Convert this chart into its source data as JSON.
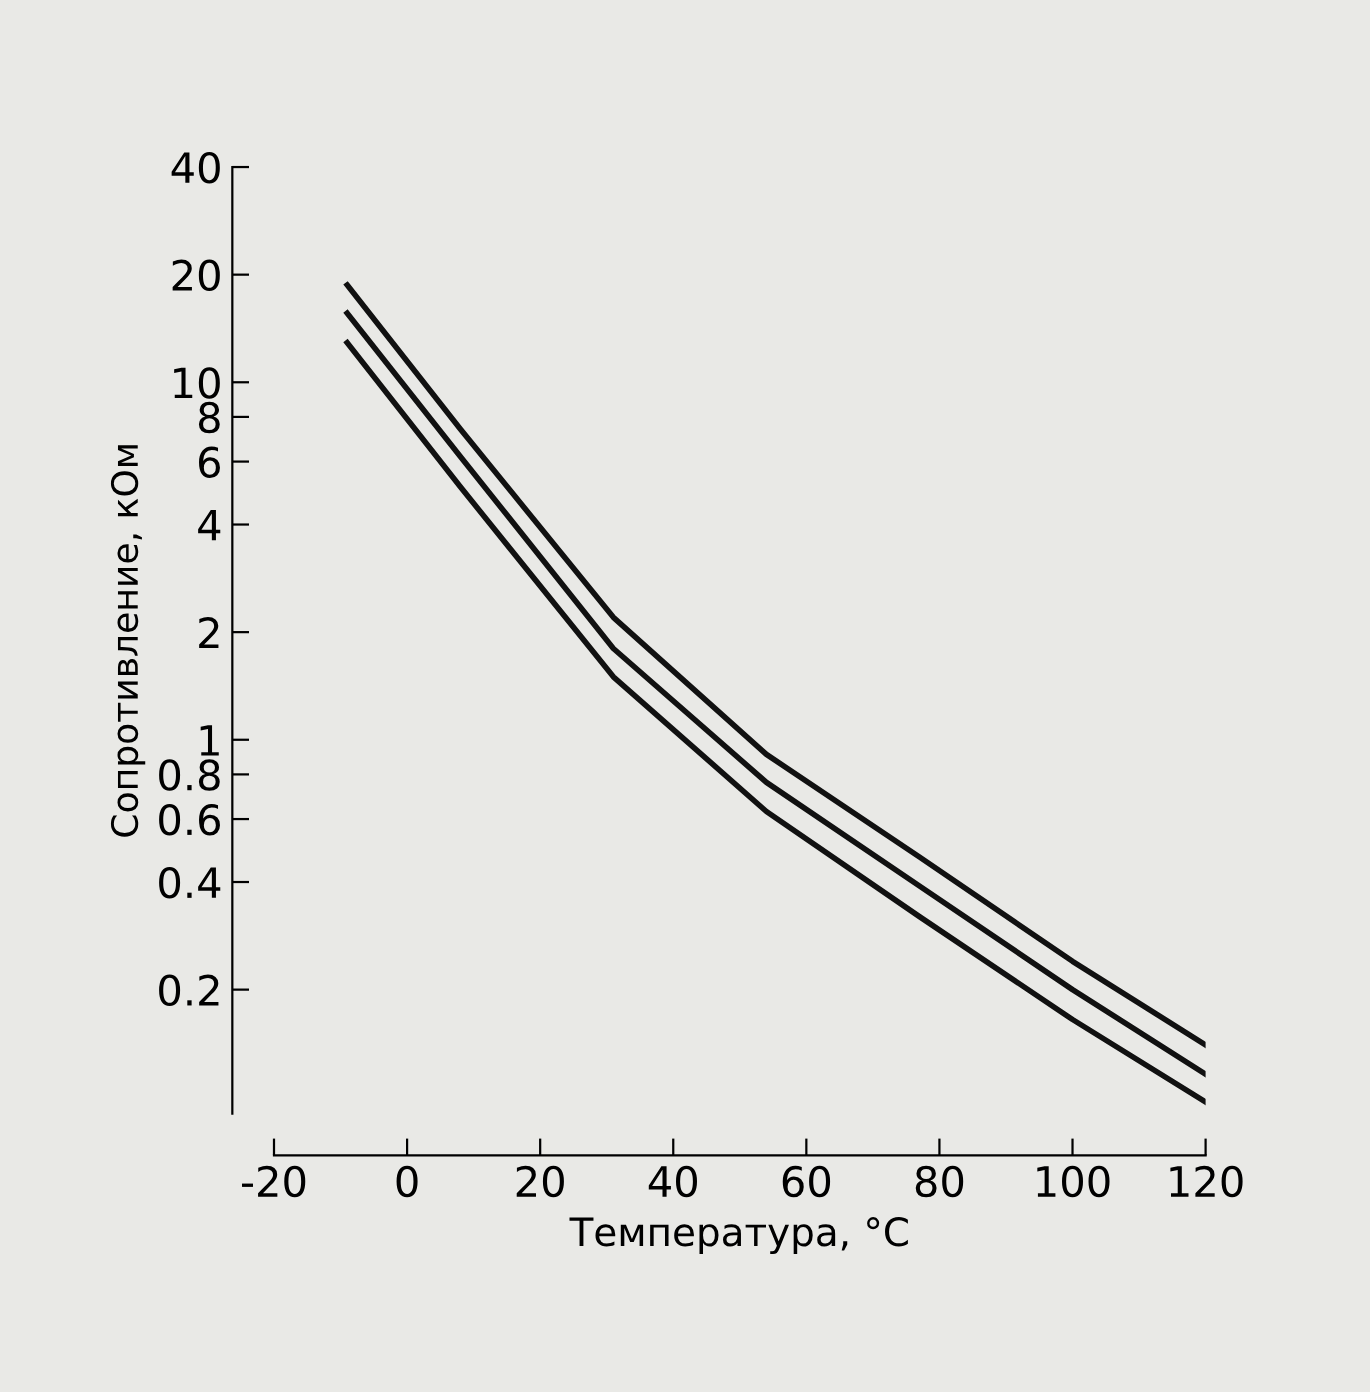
{
  "chart_data": {
    "type": "line",
    "xlabel": "Температура, °C",
    "ylabel": "Сопротивление, кОм",
    "x": [
      -9,
      8,
      31,
      54,
      77,
      100,
      120
    ],
    "series": [
      {
        "color": "#111111",
        "values": [
          18.7,
          7.4,
          2.2,
          0.91,
          0.47,
          0.24,
          0.14
        ]
      },
      {
        "color": "#111111",
        "values": [
          15.6,
          6.2,
          1.8,
          0.76,
          0.39,
          0.2,
          0.116
        ]
      },
      {
        "color": "#111111",
        "values": [
          12.9,
          5.1,
          1.5,
          0.63,
          0.32,
          0.165,
          0.097
        ]
      }
    ],
    "log": "y",
    "xlim": [
      -20,
      120
    ],
    "xticks": [
      -20,
      0,
      20,
      40,
      60,
      80,
      100,
      120
    ],
    "ylim": [
      0.09,
      40
    ],
    "yticks": [
      0.2,
      0.4,
      0.6,
      0.8,
      1,
      2,
      4,
      6,
      8,
      10,
      20,
      40
    ],
    "grid": false,
    "marker": "none",
    "line_style": "solid"
  }
}
